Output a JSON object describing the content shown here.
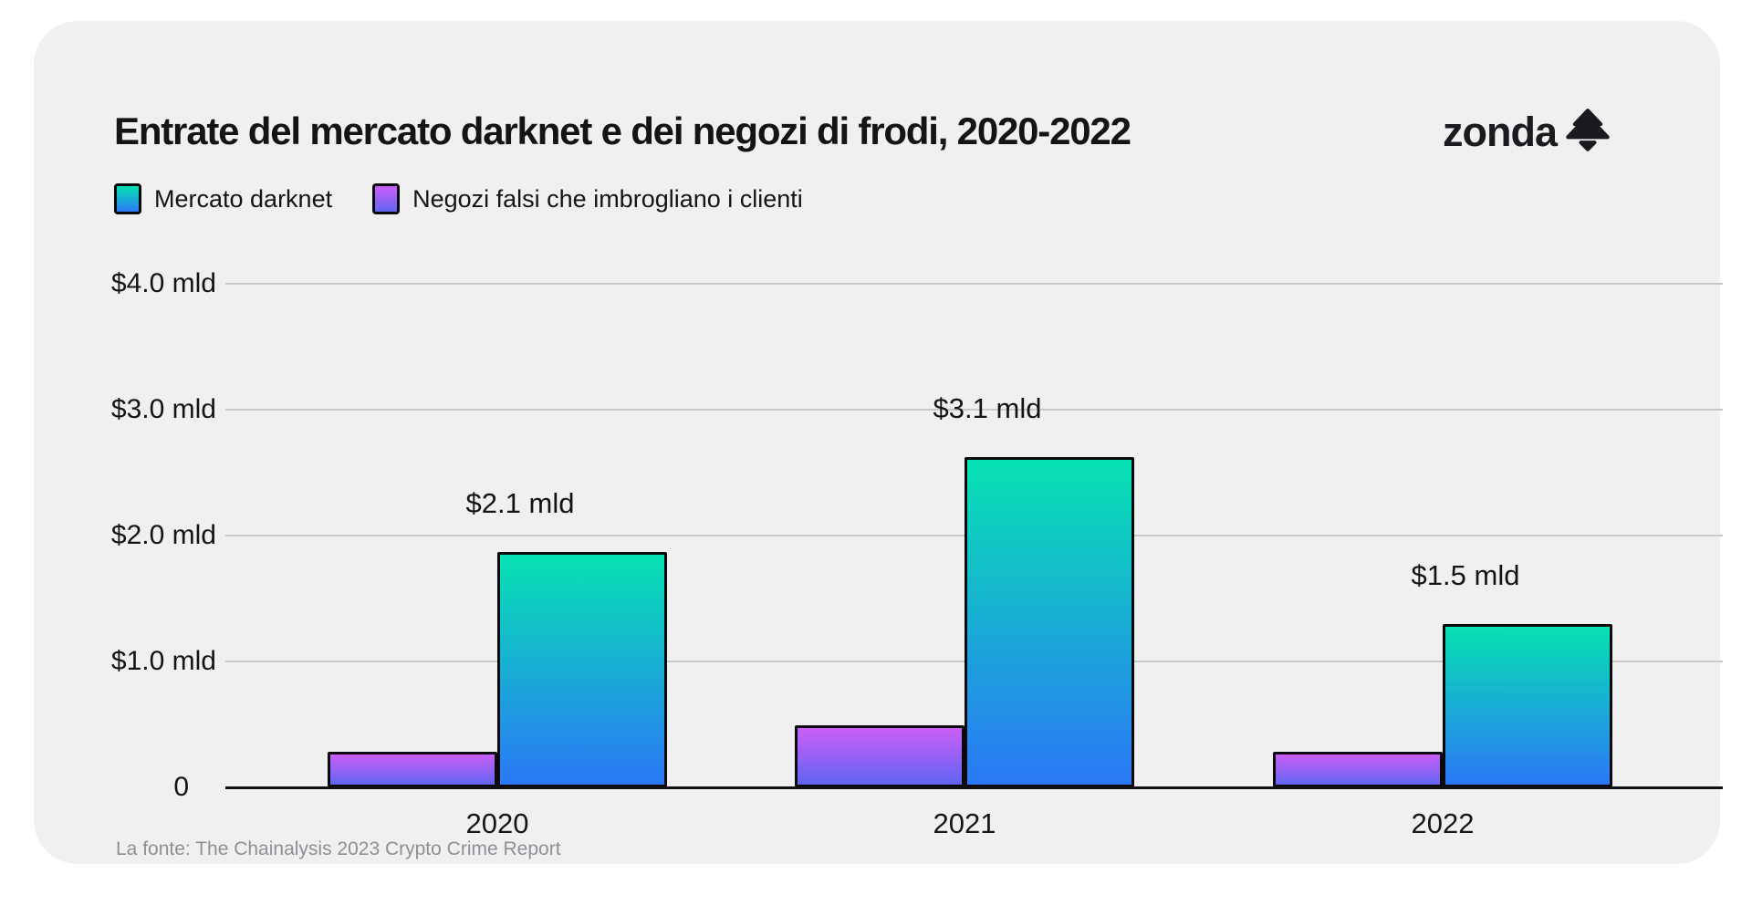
{
  "page": {
    "background": "#ffffff",
    "card_background": "#f0f0f1"
  },
  "header": {
    "title": "Entrate del mercato darknet e dei negozi di frodi, 2020-2022",
    "brand": {
      "wordmark": "zonda",
      "icon": "zonda-tree-icon",
      "color": "#1b1b1f"
    }
  },
  "chart_data": {
    "type": "bar",
    "title": "Entrate del mercato darknet e dei negozi di frodi, 2020-2022",
    "categories": [
      "2020",
      "2021",
      "2022"
    ],
    "series": [
      {
        "name": "Mercato darknet",
        "values": [
          2.1,
          3.1,
          1.5
        ],
        "data_labels": [
          "$2.1 mld",
          "$3.1 mld",
          "$1.5 mld"
        ],
        "drawn_values": [
          1.87,
          2.62,
          1.3
        ],
        "gradient_top": "#07e2b2",
        "gradient_bottom": "#2b78f6"
      },
      {
        "name": "Negozi falsi che imbrogliano i clienti",
        "values": [
          0.3,
          0.5,
          0.3
        ],
        "data_labels": [
          "",
          "",
          ""
        ],
        "drawn_values": [
          0.28,
          0.49,
          0.28
        ],
        "gradient_top": "#cb5ef7",
        "gradient_bottom": "#6165f3"
      }
    ],
    "currency": "$",
    "unit": "mld",
    "ylim": [
      0,
      4.0
    ],
    "yticks": [
      {
        "value": 4.0,
        "label": "$4.0 mld"
      },
      {
        "value": 3.0,
        "label": "$3.0 mld"
      },
      {
        "value": 2.0,
        "label": "$2.0 mld"
      },
      {
        "value": 1.0,
        "label": "$1.0 mld"
      },
      {
        "value": 0,
        "label": "0"
      }
    ],
    "grid": true,
    "legend_position": "top-left"
  },
  "source": "La fonte: The Chainalysis 2023 Crypto Crime Report"
}
